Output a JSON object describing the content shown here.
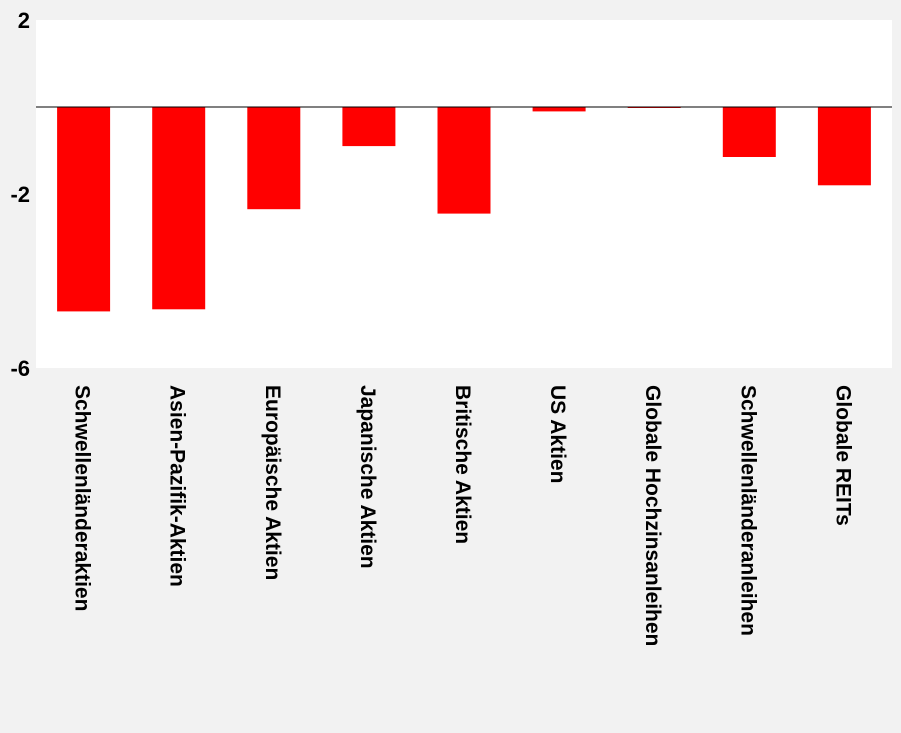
{
  "chart_data": {
    "type": "bar",
    "title": "",
    "xlabel": "",
    "ylabel": "",
    "categories": [
      "Schwellenländeraktien",
      "Asien-Pazifik-Aktien",
      "Europäische Aktien",
      "Japanische Aktien",
      "Britische Aktien",
      "US Aktien",
      "Globale Hochzinsanleihen",
      "Schwellenländeranleihen",
      "Globale REITs"
    ],
    "series": [
      {
        "values": [
          -4.7,
          -4.65,
          -2.35,
          -0.9,
          -2.45,
          -0.1,
          -0.02,
          -1.15,
          -1.8
        ]
      }
    ],
    "ylim": [
      -6,
      2
    ],
    "yticks": [
      2,
      -2,
      -6
    ],
    "ytick_labels": [
      "2",
      "-2",
      "-6"
    ],
    "grid": false,
    "legend": "none",
    "colors": {
      "bar": "#ff0000",
      "plot_background": "#ffffff",
      "page_background": "#f2f2f2",
      "axis": "#000000",
      "text": "#000000"
    }
  }
}
